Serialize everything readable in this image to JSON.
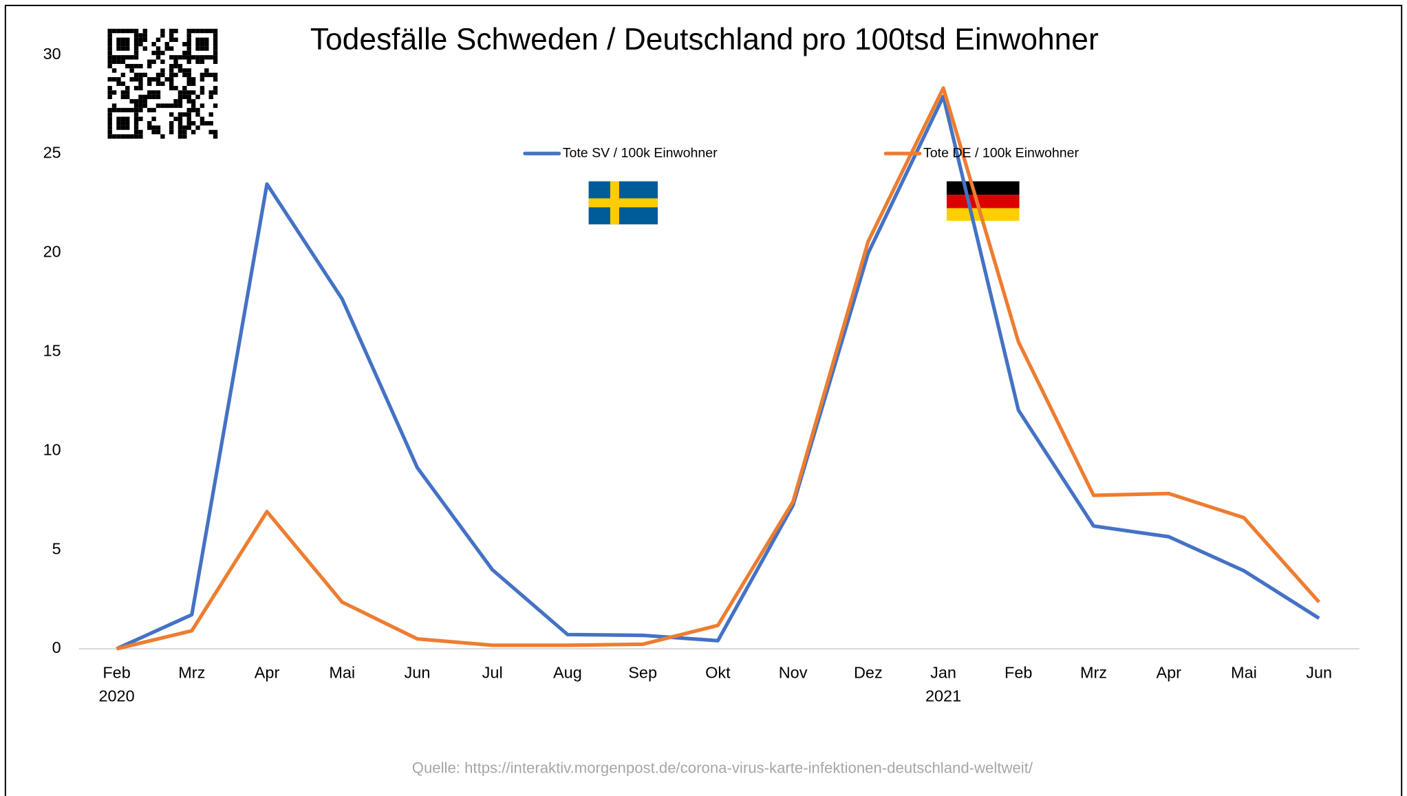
{
  "chart_data": {
    "type": "line",
    "title": "Todesfälle Schweden / Deutschland pro 100tsd Einwohner",
    "source": "Quelle: https://interaktiv.morgenpost.de/corona-virus-karte-infektionen-deutschland-weltweit/",
    "categories": [
      "Feb 2020",
      "Mrz",
      "Apr",
      "Mai",
      "Jun",
      "Jul",
      "Aug",
      "Sep",
      "Okt",
      "Nov",
      "Dez",
      "Jan 2021",
      "Feb",
      "Mrz",
      "Apr",
      "Mai",
      "Jun"
    ],
    "series": [
      {
        "name": "Tote SV / 100k Einwohner",
        "color": "#4472c4",
        "values": [
          0,
          1.72,
          23.47,
          17.67,
          9.15,
          3.99,
          0.72,
          0.68,
          0.41,
          7.25,
          19.98,
          27.9,
          12.05,
          6.2,
          5.66,
          3.94,
          1.54
        ]
      },
      {
        "name": "Tote DE / 100k Einwohner",
        "color": "#ed7d31",
        "values": [
          0,
          0.91,
          6.93,
          2.36,
          0.5,
          0.18,
          0.18,
          0.23,
          1.18,
          7.43,
          20.57,
          28.32,
          15.5,
          7.75,
          7.84,
          6.62,
          2.36
        ]
      }
    ],
    "ylim": [
      0,
      30
    ],
    "yticks": [
      0,
      5,
      10,
      15,
      20,
      25,
      30
    ],
    "grid": false
  }
}
